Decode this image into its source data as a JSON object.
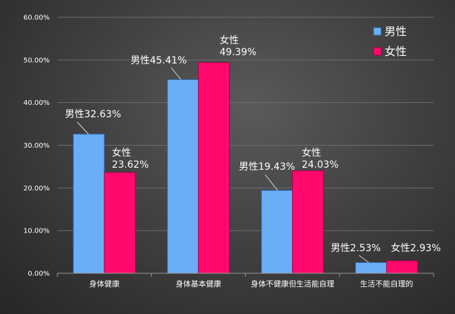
{
  "chart_data": {
    "type": "bar",
    "categories": [
      "身体健康",
      "身体基本健康",
      "身体不健康但生活能自理",
      "生活不能自理的"
    ],
    "series": [
      {
        "name": "男性",
        "values": [
          32.63,
          45.41,
          19.43,
          2.53
        ],
        "color": "#6aaef8",
        "labels": [
          "男性32.63%",
          "男性45.41%",
          "男性19.43%",
          "男性2.53%"
        ]
      },
      {
        "name": "女性",
        "values": [
          23.62,
          49.39,
          24.03,
          2.93
        ],
        "color": "#ff0a6c",
        "labels": [
          [
            "女性",
            "23.62%"
          ],
          [
            "女性",
            "49.39%"
          ],
          [
            "女性",
            "24.03%"
          ],
          [
            "女性2.93%"
          ]
        ]
      }
    ],
    "yticks": [
      "0.00%",
      "10.00%",
      "20.00%",
      "30.00%",
      "40.00%",
      "50.00%",
      "60.00%"
    ],
    "ylim": [
      0,
      60
    ],
    "grid": true,
    "legend": "top-right"
  }
}
